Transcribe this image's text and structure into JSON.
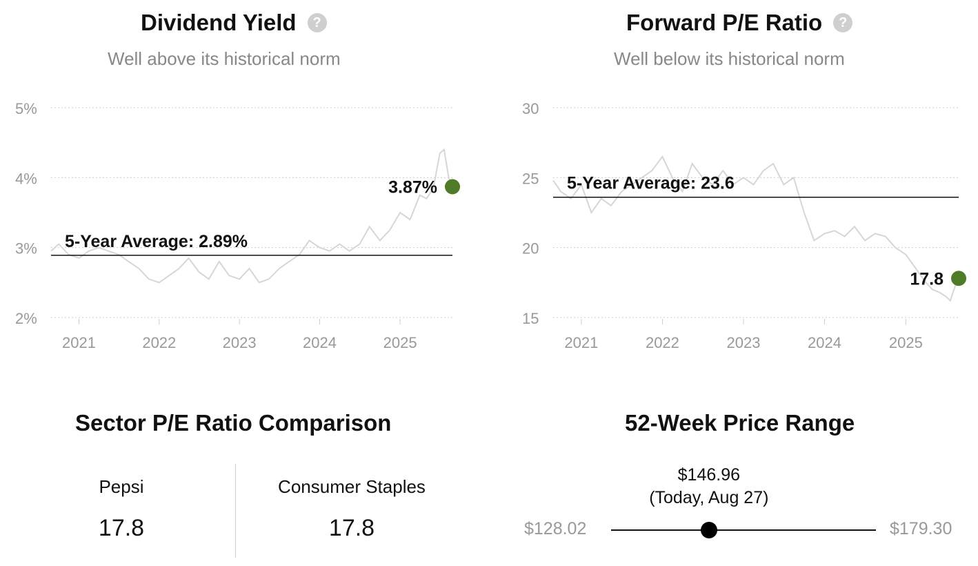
{
  "dividend": {
    "title": "Dividend Yield",
    "subtitle": "Well above its historical norm",
    "help_icon": "question-circle-icon"
  },
  "pe": {
    "title": "Forward P/E Ratio",
    "subtitle": "Well below its historical norm",
    "help_icon": "question-circle-icon"
  },
  "sector": {
    "title": "Sector P/E Ratio Comparison",
    "company_label": "Pepsi",
    "company_value": "17.8",
    "sector_label": "Consumer Staples",
    "sector_value": "17.8"
  },
  "price_range": {
    "title": "52-Week Price Range",
    "current_price": "$146.96",
    "current_note": "(Today, Aug 27)",
    "low": "$128.02",
    "high": "$179.30",
    "low_value": 128.02,
    "high_value": 179.3,
    "current_value": 146.96
  },
  "colors": {
    "accent": "#4f7a28",
    "history_line": "#d6d6d6",
    "grid": "#cccccc",
    "axis_text": "#999999"
  },
  "chart_data": [
    {
      "type": "line",
      "title": "Dividend Yield",
      "subtitle": "Well above its historical norm",
      "y_unit": "%",
      "ylim": [
        2,
        5
      ],
      "yticks": [
        2,
        3,
        4,
        5
      ],
      "ytick_labels": [
        "2%",
        "3%",
        "4%",
        "5%"
      ],
      "xlim": [
        "2020-08-27",
        "2025-08-27"
      ],
      "xticks": [
        "2021",
        "2022",
        "2023",
        "2024",
        "2025"
      ],
      "grid": true,
      "average": {
        "label": "5-Year Average: 2.89%",
        "value": 2.89
      },
      "current": {
        "label": "3.87%",
        "x": "2025-08-27",
        "value": 3.87
      },
      "series": [
        {
          "x": [
            "2020-08-27",
            "2020-10-01",
            "2020-11-15",
            "2021-01-01",
            "2021-02-15",
            "2021-04-01",
            "2021-05-15",
            "2021-07-01",
            "2021-08-15",
            "2021-10-01",
            "2021-11-15",
            "2022-01-01",
            "2022-02-15",
            "2022-04-01",
            "2022-05-15",
            "2022-07-01",
            "2022-08-15",
            "2022-10-01",
            "2022-11-15",
            "2023-01-01",
            "2023-02-15",
            "2023-04-01",
            "2023-05-15",
            "2023-07-01",
            "2023-08-15",
            "2023-10-01",
            "2023-11-15",
            "2024-01-01",
            "2024-02-15",
            "2024-04-01",
            "2024-05-15",
            "2024-07-01",
            "2024-08-15",
            "2024-10-01",
            "2024-11-15",
            "2025-01-01",
            "2025-02-15",
            "2025-04-01",
            "2025-05-01",
            "2025-06-01",
            "2025-07-01",
            "2025-07-20",
            "2025-08-10",
            "2025-08-27"
          ],
          "values": [
            2.95,
            3.05,
            2.9,
            2.85,
            2.95,
            3.0,
            2.95,
            2.9,
            2.8,
            2.7,
            2.55,
            2.5,
            2.6,
            2.7,
            2.85,
            2.65,
            2.55,
            2.8,
            2.6,
            2.55,
            2.7,
            2.5,
            2.55,
            2.7,
            2.8,
            2.9,
            3.1,
            3.0,
            2.95,
            3.05,
            2.95,
            3.05,
            3.3,
            3.1,
            3.25,
            3.5,
            3.4,
            3.75,
            3.7,
            3.85,
            4.35,
            4.4,
            4.0,
            3.87
          ]
        }
      ]
    },
    {
      "type": "line",
      "title": "Forward P/E Ratio",
      "subtitle": "Well below its historical norm",
      "ylim": [
        15,
        30
      ],
      "yticks": [
        15,
        20,
        25,
        30
      ],
      "ytick_labels": [
        "15",
        "20",
        "25",
        "30"
      ],
      "xlim": [
        "2020-08-27",
        "2025-08-27"
      ],
      "xticks": [
        "2021",
        "2022",
        "2023",
        "2024",
        "2025"
      ],
      "grid": true,
      "average": {
        "label": "5-Year Average: 23.6",
        "value": 23.6
      },
      "current": {
        "label": "17.8",
        "x": "2025-08-27",
        "value": 17.8
      },
      "series": [
        {
          "x": [
            "2020-08-27",
            "2020-10-01",
            "2020-11-15",
            "2021-01-01",
            "2021-02-15",
            "2021-04-01",
            "2021-05-15",
            "2021-07-01",
            "2021-08-15",
            "2021-10-01",
            "2021-11-15",
            "2022-01-01",
            "2022-02-15",
            "2022-04-01",
            "2022-05-15",
            "2022-07-01",
            "2022-08-15",
            "2022-10-01",
            "2022-11-15",
            "2023-01-01",
            "2023-02-15",
            "2023-04-01",
            "2023-05-15",
            "2023-07-01",
            "2023-08-15",
            "2023-10-01",
            "2023-11-15",
            "2024-01-01",
            "2024-02-15",
            "2024-04-01",
            "2024-05-15",
            "2024-07-01",
            "2024-08-15",
            "2024-10-01",
            "2024-11-15",
            "2025-01-01",
            "2025-02-15",
            "2025-04-01",
            "2025-05-01",
            "2025-06-01",
            "2025-07-01",
            "2025-07-20",
            "2025-08-10",
            "2025-08-27"
          ],
          "values": [
            24.8,
            24.0,
            23.5,
            24.5,
            22.5,
            23.5,
            23.0,
            24.0,
            24.5,
            25.0,
            25.5,
            26.5,
            25.0,
            24.0,
            26.0,
            25.0,
            24.5,
            25.5,
            24.5,
            25.0,
            24.5,
            25.5,
            26.0,
            24.5,
            25.0,
            22.5,
            20.5,
            21.0,
            21.2,
            20.8,
            21.5,
            20.5,
            21.0,
            20.8,
            20.0,
            19.5,
            18.5,
            17.5,
            17.0,
            16.8,
            16.5,
            16.2,
            17.2,
            17.8
          ]
        }
      ]
    }
  ]
}
